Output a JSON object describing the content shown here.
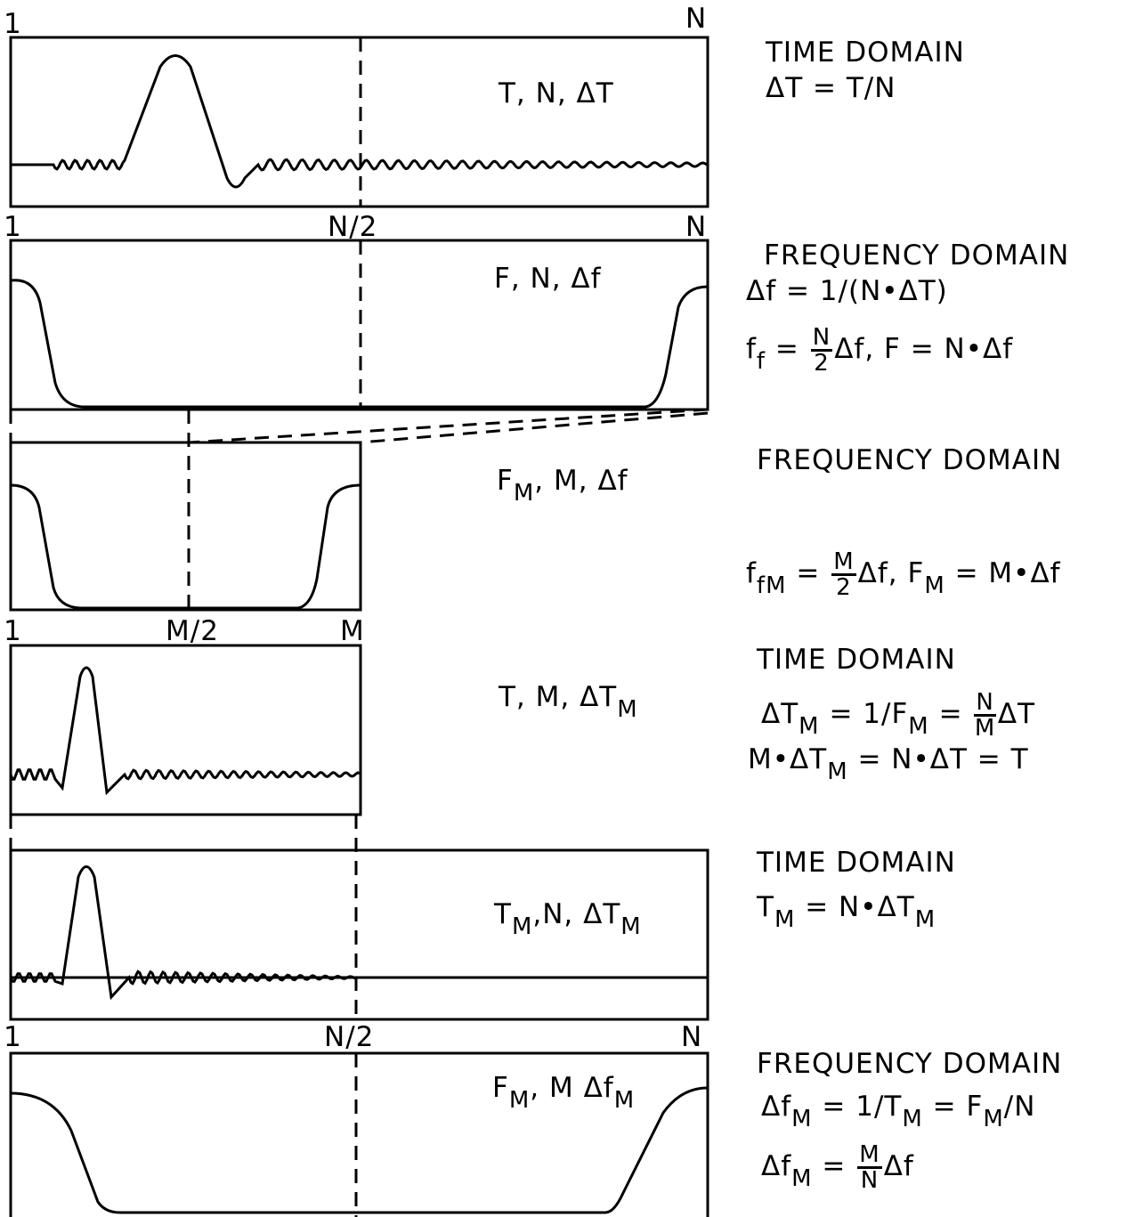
{
  "panels": [
    {
      "axis_labels": [
        "1",
        "N"
      ],
      "label": [
        "T, N, ΔT"
      ]
    },
    {
      "axis_labels": [
        "1",
        "N/2",
        "N"
      ],
      "label": [
        "F, N, Δf"
      ]
    },
    {
      "axis_labels": [],
      "label": [
        "F",
        {
          "sub": "M"
        },
        ", M, Δf"
      ]
    },
    {
      "axis_labels": [
        "1",
        "M/2",
        "M"
      ],
      "label": [
        "T, M, ΔT",
        {
          "sub": "M"
        }
      ]
    },
    {
      "axis_labels": [],
      "label": [
        "T",
        {
          "sub": "M"
        },
        ",N, ΔT",
        {
          "sub": "M"
        }
      ]
    },
    {
      "axis_labels": [
        "1",
        "N/2",
        "N"
      ],
      "label": [
        "F",
        {
          "sub": "M"
        },
        ", M Δf",
        {
          "sub": "M"
        }
      ]
    }
  ],
  "notes": [
    {
      "lines": [
        [
          "TIME DOMAIN"
        ],
        [
          "ΔT = T/N"
        ]
      ]
    },
    {
      "lines": [
        [
          "FREQUENCY DOMAIN"
        ],
        [
          "Δf = 1/(N•ΔT)"
        ],
        [
          "f",
          {
            "sub": "f"
          },
          " = ",
          {
            "num": "N",
            "den": "2"
          },
          "Δf, F = N•Δf"
        ]
      ]
    },
    {
      "lines": [
        [
          "FREQUENCY DOMAIN"
        ],
        [
          "f",
          {
            "sub": "f"
          },
          {
            "sub": "M"
          },
          " = ",
          {
            "num": "M",
            "den": "2"
          },
          "Δf, F",
          {
            "sub": "M"
          },
          " = M•Δf"
        ]
      ]
    },
    {
      "lines": [
        [
          "TIME DOMAIN"
        ],
        [
          "ΔT",
          {
            "sub": "M"
          },
          " = 1/F",
          {
            "sub": "M"
          },
          " = ",
          {
            "num": "N",
            "den": "M"
          },
          "ΔT"
        ],
        [
          "M•ΔT",
          {
            "sub": "M"
          },
          " = N•ΔT = T"
        ]
      ]
    },
    {
      "lines": [
        [
          "TIME DOMAIN"
        ],
        [
          "T",
          {
            "sub": "M"
          },
          " = N•ΔT",
          {
            "sub": "M"
          }
        ]
      ]
    },
    {
      "lines": [
        [
          "FREQUENCY DOMAIN"
        ],
        [
          "Δf",
          {
            "sub": "M"
          },
          " = 1/T",
          {
            "sub": "M"
          },
          " = F",
          {
            "sub": "M"
          },
          "/N"
        ],
        [
          "Δf",
          {
            "sub": "M"
          },
          " = ",
          {
            "num": "M",
            "den": "N"
          },
          "Δf"
        ]
      ]
    }
  ]
}
